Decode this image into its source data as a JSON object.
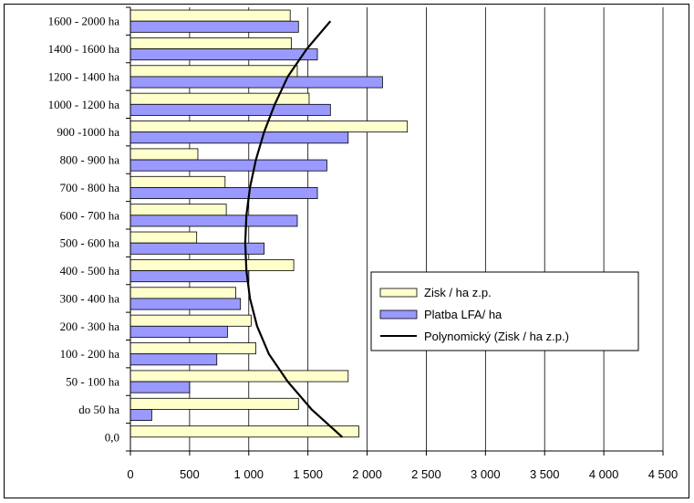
{
  "chart_data": {
    "type": "bar",
    "orientation": "horizontal",
    "categories": [
      "0,0",
      "do 50 ha",
      "50 - 100 ha",
      "100 - 200 ha",
      "200 - 300 ha",
      "300 - 400 ha",
      "400 - 500 ha",
      "500 - 600 ha",
      "600 - 700 ha",
      "700 - 800 ha",
      "800 - 900 ha",
      "900 -1000 ha",
      "1000 - 1200 ha",
      "1200 - 1400 ha",
      "1400 - 1600 ha",
      "1600 - 2000 ha"
    ],
    "series": [
      {
        "name": "Zisk / ha z.p.",
        "color": "#ffffcc",
        "values": [
          1930,
          1420,
          1840,
          1060,
          1020,
          890,
          1380,
          560,
          810,
          800,
          570,
          2340,
          1510,
          1410,
          1360,
          1350
        ]
      },
      {
        "name": "Platba LFA/ ha",
        "color": "#9999ff",
        "values": [
          0,
          180,
          500,
          730,
          820,
          930,
          1000,
          1130,
          1410,
          1580,
          1660,
          1840,
          1690,
          2130,
          1580,
          1420
        ]
      },
      {
        "name": "Polynomický (Zisk / ha z.p.)",
        "type": "trendline",
        "color": "#000000",
        "values": [
          1790,
          1530,
          1330,
          1170,
          1070,
          1010,
          980,
          970,
          980,
          1010,
          1060,
          1130,
          1220,
          1330,
          1490,
          1690
        ]
      }
    ],
    "xlim": [
      0,
      4500
    ],
    "xticks": [
      "0",
      "500",
      "1 000",
      "1 500",
      "2 000",
      "2 500",
      "3 000",
      "3 500",
      "4 000",
      "4 500"
    ],
    "grid": true,
    "legend": "center-right"
  }
}
